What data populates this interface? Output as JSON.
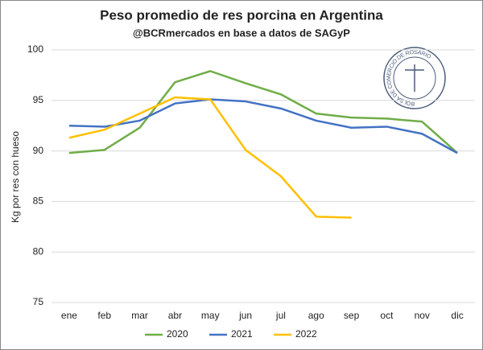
{
  "chart_data": {
    "type": "line",
    "title": "Peso promedio de res porcina en Argentina",
    "subtitle": "@BCRmercados en base a datos de SAGyP",
    "y_label": "Kg por res con hueso",
    "categories": [
      "ene",
      "feb",
      "mar",
      "abr",
      "may",
      "jun",
      "jul",
      "ago",
      "sep",
      "oct",
      "nov",
      "dic"
    ],
    "series": [
      {
        "name": "2020",
        "color": "#70ad47",
        "values": [
          89.8,
          90.1,
          92.3,
          96.8,
          97.9,
          96.7,
          95.6,
          93.7,
          93.3,
          93.2,
          92.9,
          89.8
        ]
      },
      {
        "name": "2021",
        "color": "#4472c4",
        "values": [
          92.5,
          92.4,
          93.0,
          94.7,
          95.1,
          94.9,
          94.2,
          93.0,
          92.3,
          92.4,
          91.7,
          89.8
        ]
      },
      {
        "name": "2022",
        "color": "#ffc000",
        "values": [
          91.3,
          92.1,
          93.7,
          95.3,
          95.1,
          90.1,
          87.5,
          83.5,
          83.4,
          null,
          null,
          null
        ]
      }
    ],
    "ylim": [
      75,
      100
    ],
    "yticks": [
      75,
      80,
      85,
      90,
      95,
      100
    ],
    "grid": true,
    "legend": "bottom"
  },
  "logo": "BOLSA DE COMERCIO DE ROSARIO"
}
